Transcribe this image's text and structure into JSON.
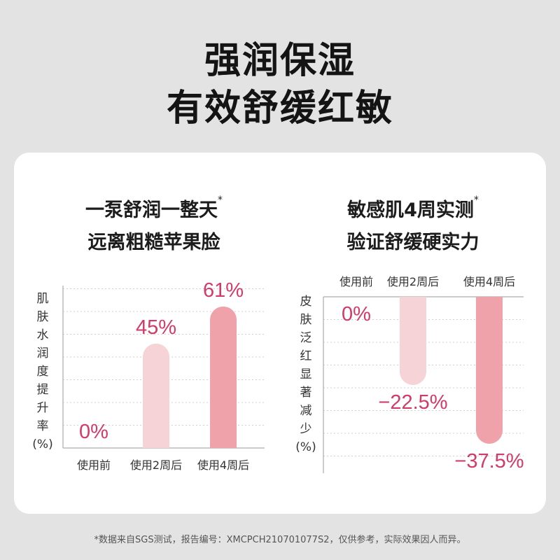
{
  "headline": {
    "line1": "强润保湿",
    "line2": "有效舒缓红敏"
  },
  "left_panel": {
    "title_line1": "一泵舒润一整天",
    "title_mark": "*",
    "title_line2": "远离粗糙苹果脸"
  },
  "right_panel": {
    "title_line1": "敏感肌4周实测",
    "title_mark": "*",
    "title_line2": "验证舒缓硬实力"
  },
  "footnote": "*数据来自SGS测试，报告编号：XMCPCH210701077S2，仅供参考，实际效果因人而异。",
  "colors": {
    "background": "#e4e3e3",
    "card": "#ffffff",
    "value_text": "#d23a68",
    "bar_light": "#f5d3d7",
    "bar_dark": "#f0a2ab",
    "axis": "#bbbbbb",
    "grid": "#d0d0d0"
  },
  "chart_data": [
    {
      "type": "bar",
      "ylabel_chars": [
        "肌",
        "肤",
        "水",
        "润",
        "度",
        "提",
        "升",
        "率",
        "(%)"
      ],
      "categories": [
        "使用前",
        "使用2周后",
        "使用4周后"
      ],
      "values": [
        0,
        45,
        61
      ],
      "value_labels": [
        "0%",
        "45%",
        "61%"
      ],
      "ylim": [
        0,
        70
      ],
      "grid": true
    },
    {
      "type": "bar",
      "ylabel_chars": [
        "皮",
        "肤",
        "泛",
        "红",
        "显",
        "著",
        "减",
        "少",
        "(%)"
      ],
      "categories": [
        "使用前",
        "使用2周后",
        "使用4周后"
      ],
      "values": [
        0,
        -22.5,
        -37.5
      ],
      "value_labels": [
        "0%",
        "−22.5%",
        "−37.5%"
      ],
      "ylim": [
        -45,
        0
      ],
      "grid": true
    }
  ]
}
